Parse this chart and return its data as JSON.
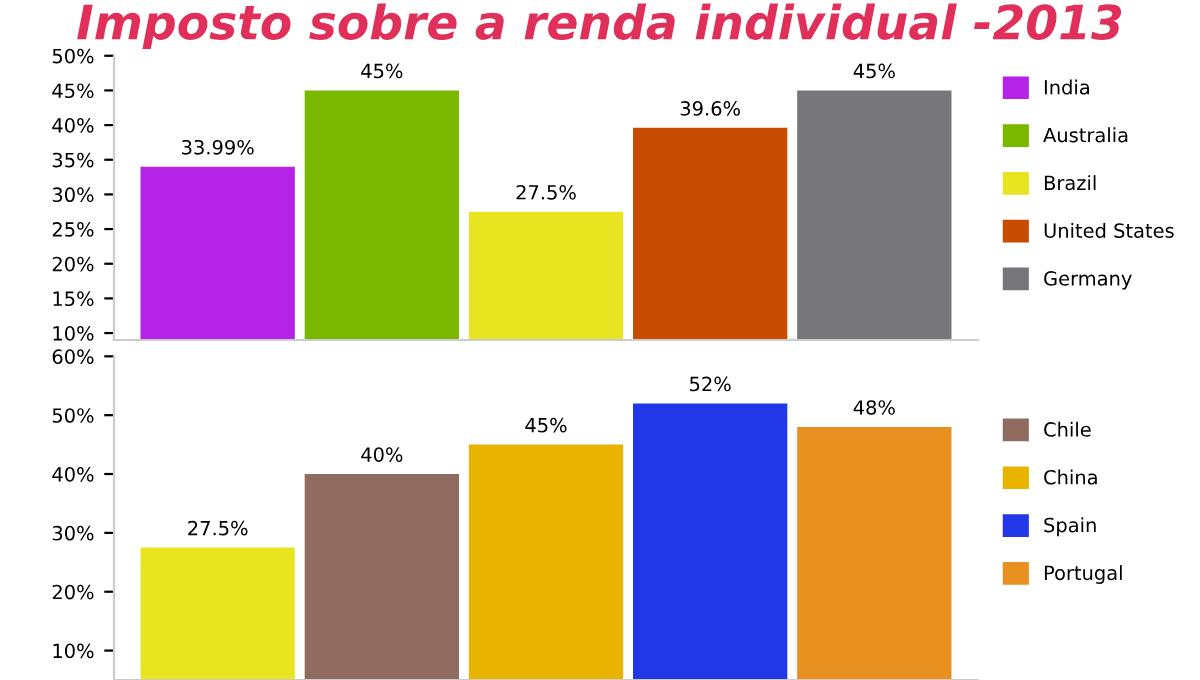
{
  "chart_data": [
    {
      "type": "bar",
      "title": "Imposto sobre a renda individual -2013",
      "categories": [
        null
      ],
      "legend": "right",
      "ylim": [
        9,
        50
      ],
      "yticks": [
        {
          "value": 10,
          "label": "10%"
        },
        {
          "value": 15,
          "label": "15%"
        },
        {
          "value": 20,
          "label": "20%"
        },
        {
          "value": 25,
          "label": "25%"
        },
        {
          "value": 30,
          "label": "30%"
        },
        {
          "value": 35,
          "label": "35%"
        },
        {
          "value": 40,
          "label": "40%"
        },
        {
          "value": 45,
          "label": "45%"
        },
        {
          "value": 50,
          "label": "50%"
        }
      ],
      "series": [
        {
          "name": "India",
          "color": "#b523e8",
          "values": [
            33.99
          ],
          "value_labels": [
            "33.99%"
          ]
        },
        {
          "name": "Australia",
          "color": "#7ab800",
          "values": [
            45
          ],
          "value_labels": [
            "45%"
          ]
        },
        {
          "name": "Brazil",
          "color": "#e8e420",
          "values": [
            27.5
          ],
          "value_labels": [
            "27.5%"
          ]
        },
        {
          "name": "United States",
          "color": "#c84c00",
          "values": [
            39.6
          ],
          "value_labels": [
            "39.6%"
          ]
        },
        {
          "name": "Germany",
          "color": "#77767b",
          "values": [
            45
          ],
          "value_labels": [
            "45%"
          ]
        }
      ]
    },
    {
      "type": "bar",
      "categories": [
        null
      ],
      "legend": "right",
      "ylim": [
        5,
        60
      ],
      "yticks": [
        {
          "value": 10,
          "label": "10%"
        },
        {
          "value": 20,
          "label": "20%"
        },
        {
          "value": 30,
          "label": "30%"
        },
        {
          "value": 40,
          "label": "40%"
        },
        {
          "value": 50,
          "label": "50%"
        },
        {
          "value": 60,
          "label": "60%"
        }
      ],
      "series": [
        {
          "color": "#e8e420",
          "values": [
            27.5
          ],
          "value_labels": [
            "27.5%"
          ]
        },
        {
          "name": "Chile",
          "color": "#8f6b60",
          "values": [
            40
          ],
          "value_labels": [
            "40%"
          ]
        },
        {
          "name": "China",
          "color": "#e8b400",
          "values": [
            45
          ],
          "value_labels": [
            "45%"
          ]
        },
        {
          "name": "Spain",
          "color": "#2238e8",
          "values": [
            52
          ],
          "value_labels": [
            "52%"
          ]
        },
        {
          "name": "Portugal",
          "color": "#e89020",
          "values": [
            48
          ],
          "value_labels": [
            "48%"
          ]
        }
      ]
    }
  ]
}
